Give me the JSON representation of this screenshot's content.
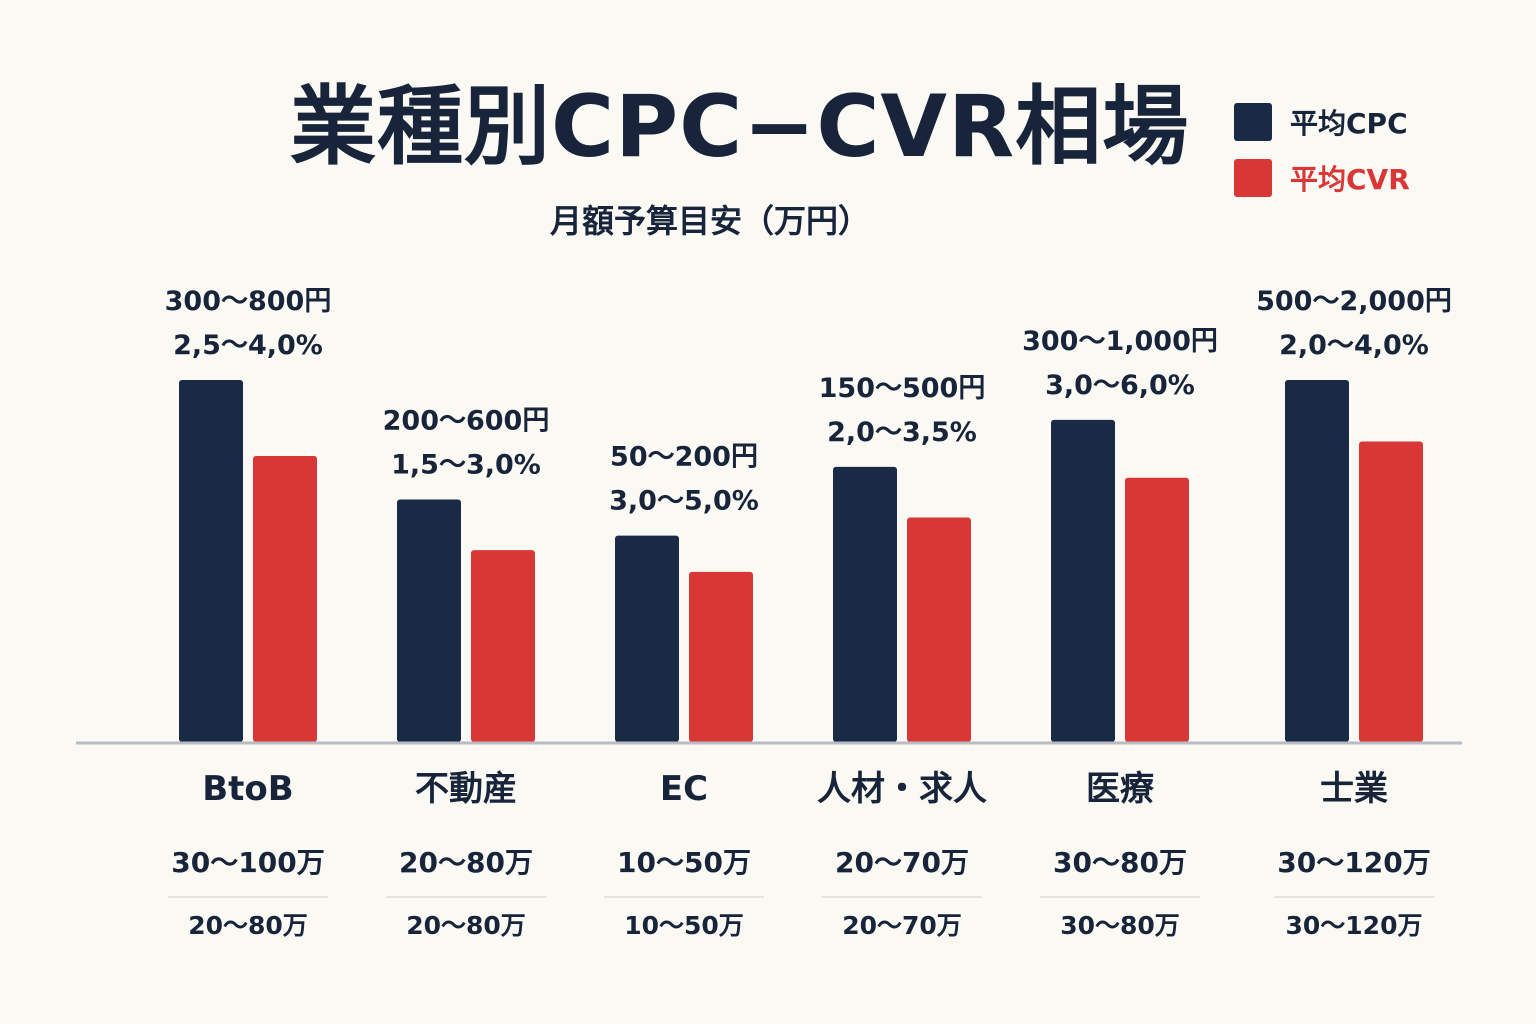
{
  "title": "業種別CPC−CVR相場",
  "subtitle": "月額予算目安（万円）",
  "legend": [
    {
      "label": "平均CPC",
      "color": "#182a44"
    },
    {
      "label": "平均CVR",
      "color": "#d93636"
    }
  ],
  "colors": {
    "cpc": "#182a44",
    "cvr": "#d93636",
    "axis": "#b8bcc6",
    "text": "#17243a",
    "background": "#fbf9f4"
  },
  "chart_data": {
    "type": "bar",
    "categories": [
      "BtoB",
      "不動産",
      "EC",
      "人材・求人",
      "医療",
      "士業"
    ],
    "series": [
      {
        "name": "平均CPC",
        "values": [
          100,
          67,
          57,
          76,
          89,
          100
        ]
      },
      {
        "name": "平均CVR",
        "values": [
          79,
          53,
          47,
          62,
          73,
          83
        ]
      }
    ],
    "cpc_labels": [
      "300～800円",
      "200～600円",
      "50～200円",
      "150～500円",
      "300～1,000円",
      "500～2,000円"
    ],
    "cvr_labels": [
      "2,5～4,0%",
      "1,5～3,0%",
      "3,0～5,0%",
      "2,0～3,5%",
      "3,0～6,0%",
      "2,0～4,0%"
    ],
    "budget_primary": [
      "30～100万",
      "20～80万",
      "10～50万",
      "20～70万",
      "30～80万",
      "30～120万"
    ],
    "budget_secondary": [
      "20～80万",
      "20～80万",
      "10～50万",
      "20～70万",
      "30～80万",
      "30～120万"
    ],
    "ylim": [
      0,
      100
    ],
    "grid": false,
    "legend_position": "top-right"
  }
}
